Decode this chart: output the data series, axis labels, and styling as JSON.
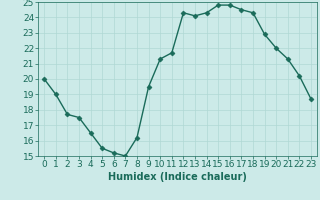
{
  "x": [
    0,
    1,
    2,
    3,
    4,
    5,
    6,
    7,
    8,
    9,
    10,
    11,
    12,
    13,
    14,
    15,
    16,
    17,
    18,
    19,
    20,
    21,
    22,
    23
  ],
  "y": [
    20,
    19,
    17.7,
    17.5,
    16.5,
    15.5,
    15.2,
    15.0,
    16.2,
    19.5,
    21.3,
    21.7,
    24.3,
    24.1,
    24.3,
    24.8,
    24.8,
    24.5,
    24.3,
    22.9,
    22.0,
    21.3,
    20.2,
    18.7
  ],
  "line_color": "#1a6b5a",
  "marker": "D",
  "marker_size": 2.5,
  "line_width": 1.0,
  "bg_color": "#cceae8",
  "grid_color": "#b0d8d4",
  "xlabel": "Humidex (Indice chaleur)",
  "xlim": [
    -0.5,
    23.5
  ],
  "ylim": [
    15,
    25
  ],
  "yticks": [
    15,
    16,
    17,
    18,
    19,
    20,
    21,
    22,
    23,
    24,
    25
  ],
  "xticks": [
    0,
    1,
    2,
    3,
    4,
    5,
    6,
    7,
    8,
    9,
    10,
    11,
    12,
    13,
    14,
    15,
    16,
    17,
    18,
    19,
    20,
    21,
    22,
    23
  ],
  "label_fontsize": 7,
  "tick_fontsize": 6.5
}
